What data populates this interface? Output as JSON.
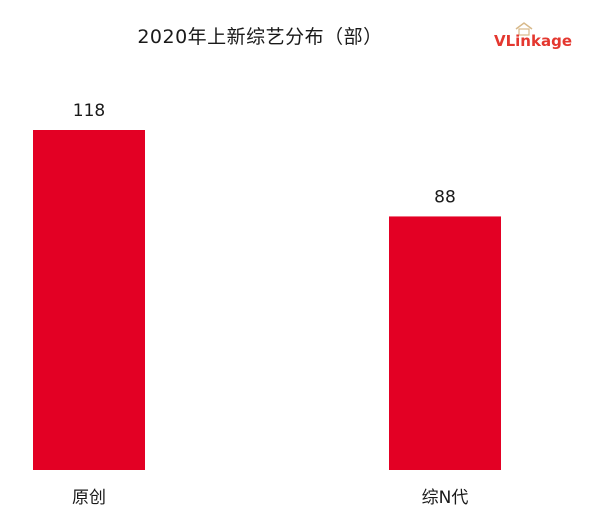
{
  "header": {
    "title": "2020年上新综艺分布（部）",
    "logo_text": "VLinkage"
  },
  "colors": {
    "bar": "#e30024",
    "logo": "#e4372f",
    "text": "#1a1a1a"
  },
  "chart_data": {
    "type": "bar",
    "title": "2020年上新综艺分布（部）",
    "categories": [
      "原创",
      "综N代"
    ],
    "values": [
      118,
      88
    ],
    "xlabel": "",
    "ylabel": "",
    "ylim": [
      0,
      118
    ],
    "grid": false,
    "legend": "none",
    "data_labels": true
  }
}
